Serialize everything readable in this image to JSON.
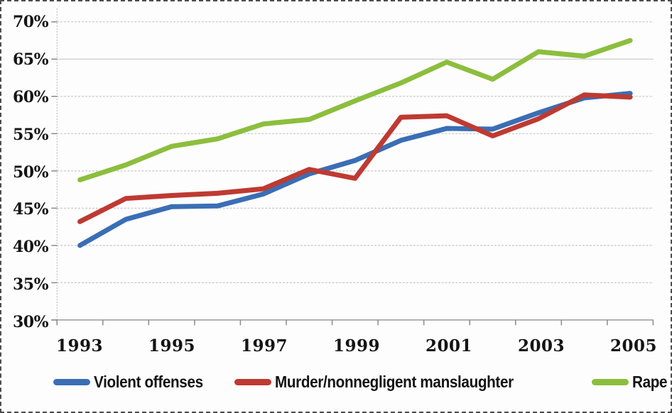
{
  "chart_data": {
    "type": "line",
    "x": [
      1993,
      1994,
      1995,
      1996,
      1997,
      1998,
      1999,
      2000,
      2001,
      2002,
      2003,
      2004,
      2005
    ],
    "x_axis": {
      "tick_labels": [
        "1993",
        "1995",
        "1997",
        "1999",
        "2001",
        "2003",
        "2005"
      ],
      "ticks_between_categories": true
    },
    "y_axis": {
      "tick_labels": [
        "70%",
        "65%",
        "60%",
        "55%",
        "50%",
        "45%",
        "40%",
        "35%",
        "30%"
      ],
      "min": 30,
      "max": 70,
      "step": 5,
      "format": "percent"
    },
    "ylim": [
      30,
      70
    ],
    "grid": {
      "horizontal": true,
      "vertical": false,
      "style": "dashed"
    },
    "legend_position": "bottom",
    "title": "",
    "xlabel": "",
    "ylabel": "",
    "series": [
      {
        "name": "Violent offenses",
        "color": "#3a6eb5",
        "values": [
          40.0,
          43.5,
          45.2,
          45.3,
          46.9,
          49.6,
          51.4,
          54.1,
          55.7,
          55.6,
          57.8,
          59.8,
          60.4
        ]
      },
      {
        "name": "Murder/nonnegligent manslaughter",
        "color": "#be3a32",
        "values": [
          43.2,
          46.3,
          46.7,
          47.0,
          47.6,
          50.2,
          49.0,
          57.2,
          57.4,
          54.7,
          57.0,
          60.2,
          59.9
        ]
      },
      {
        "name": "Rape",
        "color": "#8cbe3e",
        "values": [
          48.8,
          50.8,
          53.3,
          54.3,
          56.3,
          56.9,
          59.4,
          61.8,
          64.6,
          62.3,
          66.0,
          65.4,
          67.5
        ]
      }
    ]
  },
  "colors": {
    "background": "#fdfdfd",
    "frame_border": "#4d4d4d",
    "grid": "#c7c7c7",
    "axis_line": "#9a9a9a",
    "tick": "#8a8a8a",
    "text": "#141414"
  }
}
